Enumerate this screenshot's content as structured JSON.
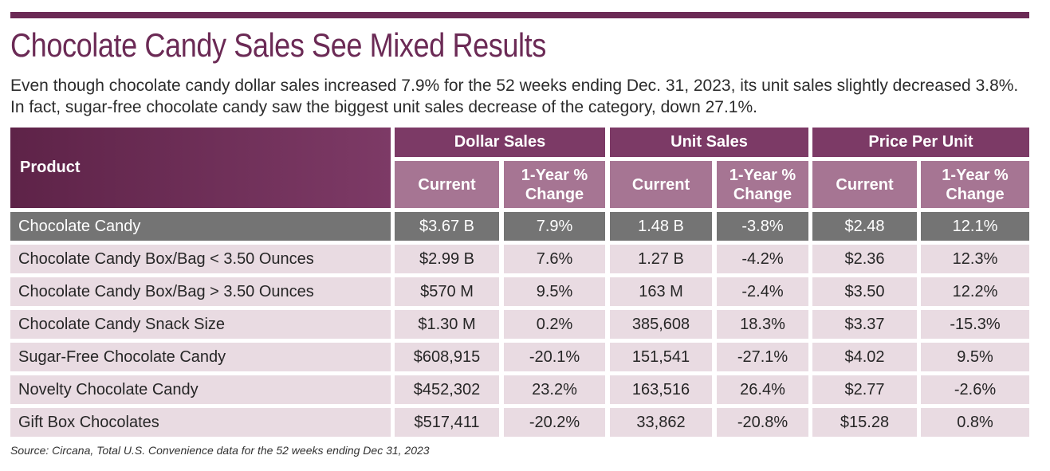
{
  "title": "Chocolate Candy Sales See Mixed Results",
  "subtitle": "Even though chocolate candy dollar sales increased 7.9% for the 52 weeks ending Dec. 31, 2023, its unit sales slightly decreased 3.8%. In fact, sugar-free chocolate candy saw the biggest unit sales decrease of the category, down 27.1%.",
  "table": {
    "product_header": "Product",
    "groups": [
      "Dollar Sales",
      "Unit Sales",
      "Price Per Unit"
    ],
    "sub_headers": [
      "Current",
      "1-Year % Change",
      "Current",
      "1-Year % Change",
      "Current",
      "1-Year % Change"
    ],
    "rows": [
      [
        "Chocolate Candy",
        "$3.67 B",
        "7.9%",
        "1.48 B",
        "-3.8%",
        "$2.48",
        "12.1%"
      ],
      [
        "Chocolate Candy Box/Bag < 3.50 Ounces",
        "$2.99 B",
        "7.6%",
        "1.27 B",
        "-4.2%",
        "$2.36",
        "12.3%"
      ],
      [
        "Chocolate Candy Box/Bag > 3.50 Ounces",
        "$570 M",
        "9.5%",
        "163 M",
        "-2.4%",
        "$3.50",
        "12.2%"
      ],
      [
        "Chocolate Candy Snack Size",
        "$1.30 M",
        "0.2%",
        "385,608",
        "18.3%",
        "$3.37",
        "-15.3%"
      ],
      [
        "Sugar-Free Chocolate Candy",
        "$608,915",
        "-20.1%",
        "151,541",
        "-27.1%",
        "$4.02",
        "9.5%"
      ],
      [
        "Novelty Chocolate Candy",
        "$452,302",
        "23.2%",
        "163,516",
        "26.4%",
        "$2.77",
        "-2.6%"
      ],
      [
        "Gift Box Chocolates",
        "$517,411",
        "-20.2%",
        "33,862",
        "-20.8%",
        "$15.28",
        "0.8%"
      ]
    ]
  },
  "source": "Source: Circana, Total U.S. Convenience data for the 52 weeks ending Dec 31, 2023",
  "colors": {
    "accent": "#6b2a55",
    "header": "#864870",
    "sub_header": "#a67593",
    "highlight_row": "#747474",
    "body_row": "#e9dbe2"
  }
}
